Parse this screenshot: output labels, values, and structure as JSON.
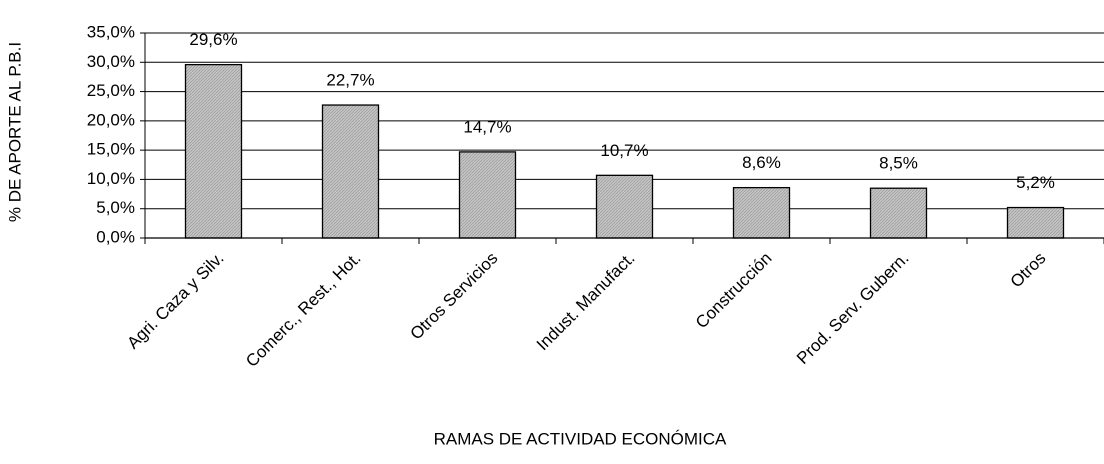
{
  "chart_data": {
    "type": "bar",
    "x_label": "RAMAS DE ACTIVIDAD ECONÓMICA",
    "y_label": "% DE APORTE AL P.B.I",
    "categories": [
      "Agri. Caza y Silv.",
      "Comerc., Rest., Hot.",
      "Otros Servicios",
      "Indust. Manufact.",
      "Construcción",
      "Prod. Serv. Gubern.",
      "Otros"
    ],
    "values": [
      29.6,
      22.7,
      14.7,
      10.7,
      8.6,
      8.5,
      5.2
    ],
    "value_labels": [
      "29,6%",
      "22,7%",
      "14,7%",
      "10,7%",
      "8,6%",
      "8,5%",
      "5,2%"
    ],
    "color": "#c4c4c4",
    "ylim": [
      0,
      35
    ],
    "yticks": [
      {
        "value": 0,
        "label": "0,0%"
      },
      {
        "value": 5,
        "label": "5,0%"
      },
      {
        "value": 10,
        "label": "10,0%"
      },
      {
        "value": 15,
        "label": "15,0%"
      },
      {
        "value": 20,
        "label": "20,0%"
      },
      {
        "value": 25,
        "label": "25,0%"
      },
      {
        "value": 30,
        "label": "30,0%"
      },
      {
        "value": 35,
        "label": "35,0%"
      }
    ],
    "grid": true
  }
}
